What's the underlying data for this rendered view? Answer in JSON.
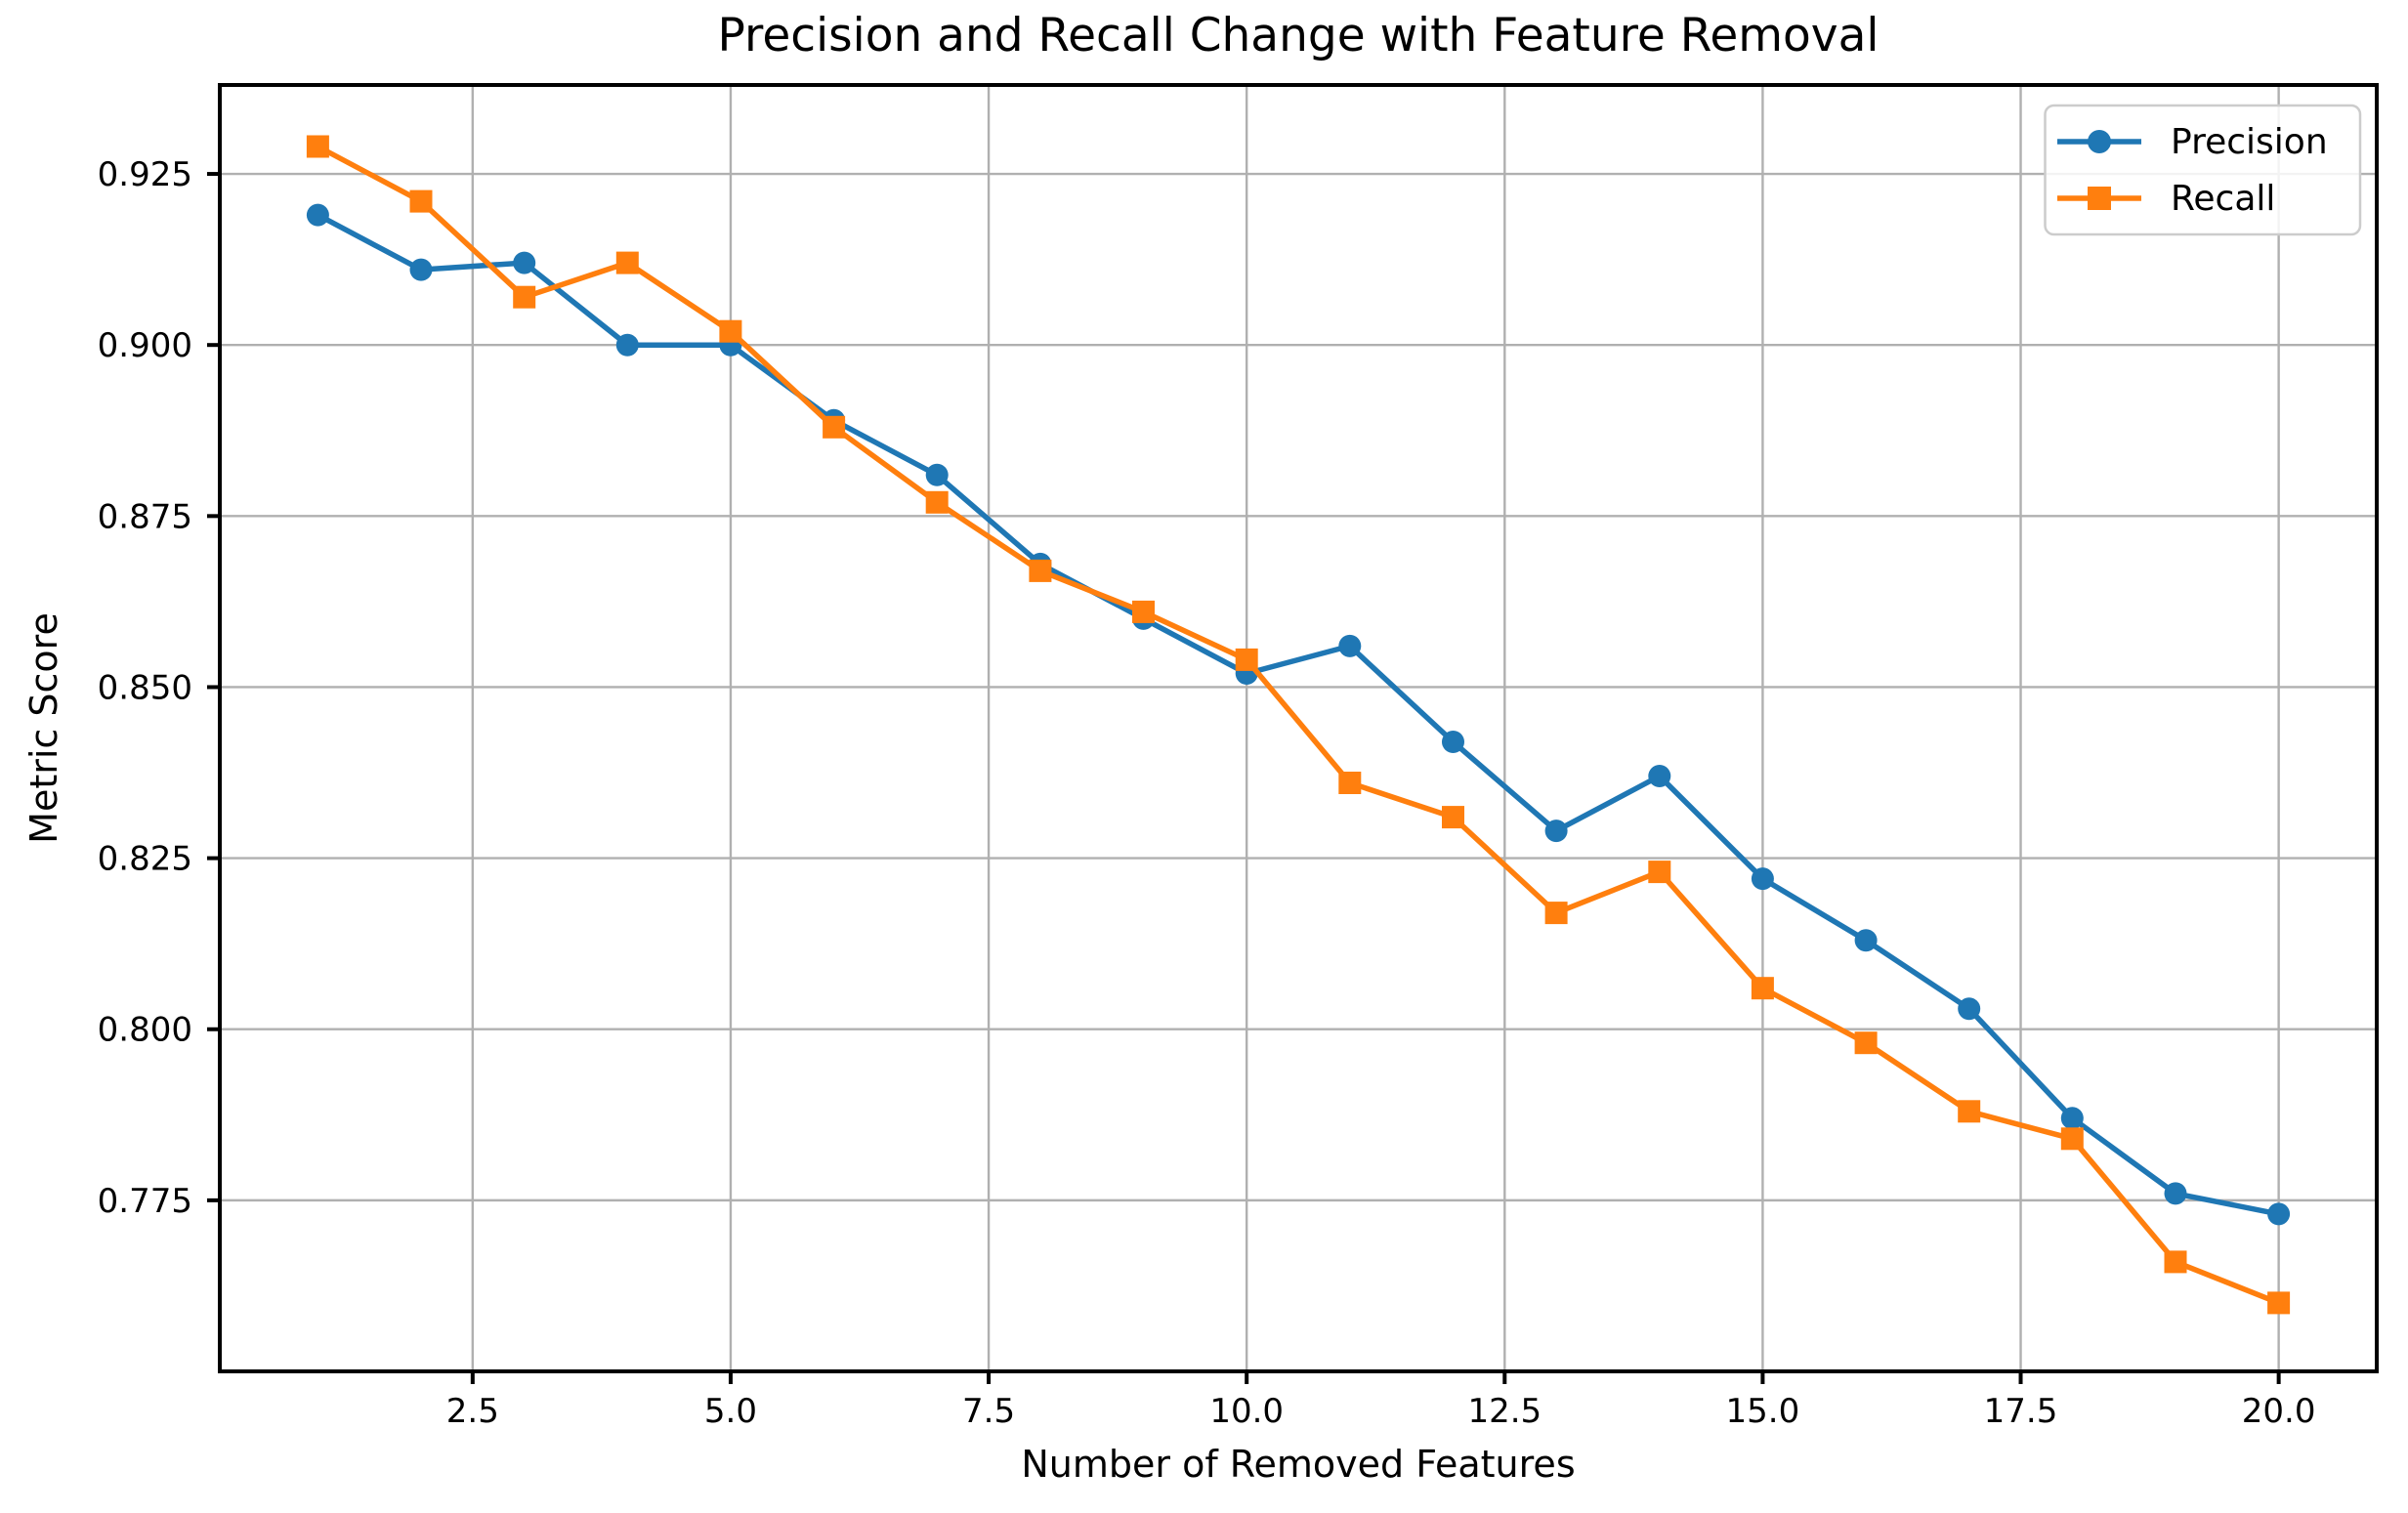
{
  "chart_data": {
    "type": "line",
    "title": "Precision and Recall Change with Feature Removal",
    "xlabel": "Number of Removed Features",
    "ylabel": "Metric Score",
    "x": [
      1,
      2,
      3,
      4,
      5,
      6,
      7,
      8,
      9,
      10,
      11,
      12,
      13,
      14,
      15,
      16,
      17,
      18,
      19,
      20
    ],
    "series": [
      {
        "name": "Precision",
        "color": "#1f77b4",
        "marker": "circle",
        "values": [
          0.919,
          0.911,
          0.912,
          0.9,
          0.9,
          0.889,
          0.881,
          0.868,
          0.86,
          0.852,
          0.856,
          0.842,
          0.829,
          0.837,
          0.822,
          0.813,
          0.803,
          0.787,
          0.776,
          0.773
        ]
      },
      {
        "name": "Recall",
        "color": "#ff7f0e",
        "marker": "square",
        "values": [
          0.929,
          0.921,
          0.907,
          0.912,
          0.902,
          0.888,
          0.877,
          0.867,
          0.861,
          0.854,
          0.836,
          0.831,
          0.817,
          0.823,
          0.806,
          0.798,
          0.788,
          0.784,
          0.766,
          0.76
        ]
      }
    ],
    "xlim": [
      0.05,
      20.95
    ],
    "ylim": [
      0.75,
      0.938
    ],
    "xticks": [
      2.5,
      5.0,
      7.5,
      10.0,
      12.5,
      15.0,
      17.5,
      20.0
    ],
    "xtick_labels": [
      "2.5",
      "5.0",
      "7.5",
      "10.0",
      "12.5",
      "15.0",
      "17.5",
      "20.0"
    ],
    "yticks": [
      0.775,
      0.8,
      0.825,
      0.85,
      0.875,
      0.9,
      0.925
    ],
    "ytick_labels": [
      "0.775",
      "0.800",
      "0.825",
      "0.850",
      "0.875",
      "0.900",
      "0.925"
    ],
    "grid": true,
    "grid_color": "#b0b0b0",
    "spine_color": "#000000",
    "background": "#ffffff",
    "legend_position": "upper right"
  }
}
